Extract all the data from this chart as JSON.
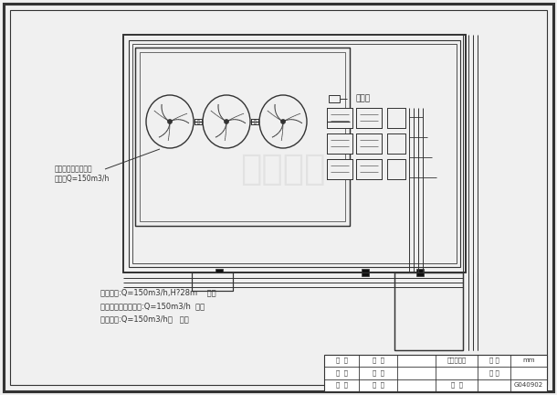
{
  "bg_color": "#f0f0f0",
  "line_color": "#333333",
  "annotation1": "冷却水泵:Q=150m3/h,H?28m    四台",
  "annotation2": "标准型玻璃钉冷却塔:Q=150m3/h  三台",
  "annotation3": "水处理仪:Q=150m3/h，   三台",
  "label_tower": "标准型玻璃钉冷却塔",
  "label_flow": "进水量Q=150m3/h",
  "label_water": "接给水",
  "table_title": "屋面平面图",
  "table_unit": "mm",
  "table_num": "G040902",
  "table_row1_c1": "设  计",
  "table_row1_c2": "校  对",
  "table_row2_c1": "绘  图",
  "table_row2_c2": "审  定",
  "table_row3_c1": "审  核",
  "table_row3_c2": "日  期",
  "table_unit_label": "单 位",
  "table_ratio_label": "比 例",
  "watermark": "土木在线"
}
